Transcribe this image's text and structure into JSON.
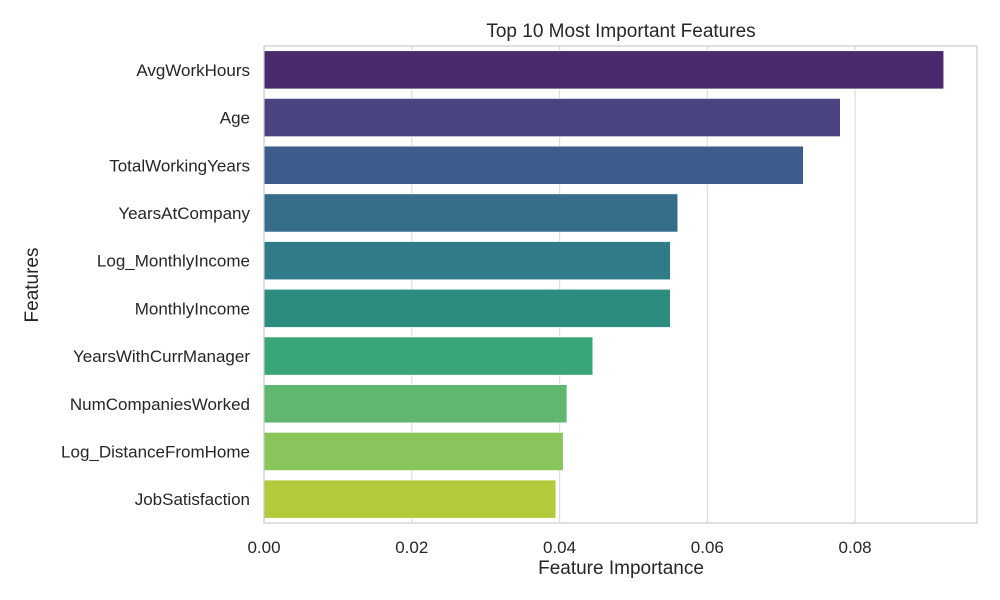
{
  "chart_data": {
    "type": "bar",
    "orientation": "horizontal",
    "title": "Top 10 Most Important Features",
    "xlabel": "Feature Importance",
    "ylabel": "Features",
    "xlim": [
      0,
      0.0965
    ],
    "xticks": [
      0.0,
      0.02,
      0.04,
      0.06,
      0.08
    ],
    "xtick_labels": [
      "0.00",
      "0.02",
      "0.04",
      "0.06",
      "0.08"
    ],
    "grid": "vertical",
    "categories": [
      "AvgWorkHours",
      "Age",
      "TotalWorkingYears",
      "YearsAtCompany",
      "Log_MonthlyIncome",
      "MonthlyIncome",
      "YearsWithCurrManager",
      "NumCompaniesWorked",
      "Log_DistanceFromHome",
      "JobSatisfaction"
    ],
    "values": [
      0.092,
      0.078,
      0.073,
      0.056,
      0.055,
      0.055,
      0.0445,
      0.041,
      0.0405,
      0.0395
    ],
    "colors": [
      "#482A6D",
      "#4A4581",
      "#3D5C8C",
      "#366D8B",
      "#2F7C88",
      "#2C8D7E",
      "#38A677",
      "#60B76F",
      "#88C65B",
      "#B1CB3B"
    ]
  }
}
